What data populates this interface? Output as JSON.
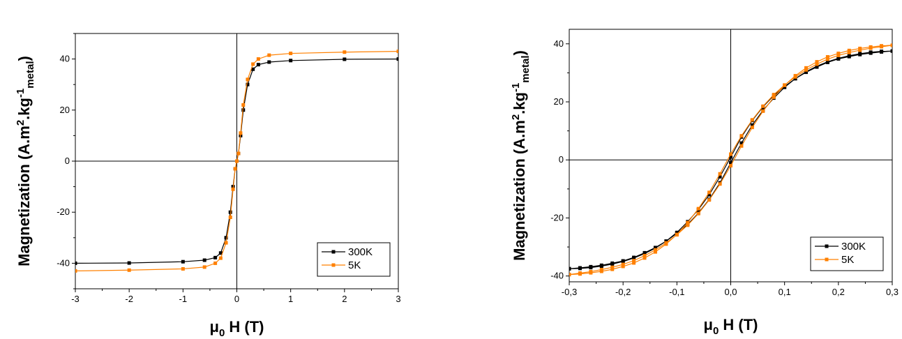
{
  "chart_data": [
    {
      "type": "line",
      "title": "",
      "xlabel": "μ0H (T)",
      "ylabel": "Magnetization (A.m2.kg-1metal)",
      "xlim": [
        -3,
        3
      ],
      "ylim": [
        -50,
        50
      ],
      "xticks": [
        "-3",
        "-2",
        "-1",
        "0",
        "1",
        "2",
        "3"
      ],
      "yticks": [
        "-40",
        "-20",
        "0",
        "20",
        "40"
      ],
      "legend_position": "bottom-right",
      "origin_lines": true,
      "series": [
        {
          "name": "300K",
          "color": "#000000",
          "marker": "square",
          "x": [
            -3.0,
            -2.0,
            -1.0,
            -0.6,
            -0.4,
            -0.3,
            -0.2,
            -0.12,
            -0.07,
            -0.03,
            0.0,
            0.03,
            0.07,
            0.12,
            0.2,
            0.3,
            0.4,
            0.6,
            1.0,
            2.0,
            3.0
          ],
          "y": [
            -40.0,
            -39.9,
            -39.4,
            -38.8,
            -37.8,
            -36.0,
            -30.0,
            -20.0,
            -10.0,
            -3.0,
            0.0,
            3.0,
            10.0,
            20.0,
            30.0,
            36.0,
            37.8,
            38.8,
            39.4,
            39.9,
            40.0
          ]
        },
        {
          "name": "5K",
          "color": "#ff8000",
          "marker": "square",
          "x": [
            -3.0,
            -2.0,
            -1.0,
            -0.6,
            -0.4,
            -0.3,
            -0.2,
            -0.12,
            -0.07,
            -0.03,
            0.0,
            0.03,
            0.07,
            0.12,
            0.2,
            0.3,
            0.4,
            0.6,
            1.0,
            2.0,
            3.0
          ],
          "y": [
            -43.0,
            -42.7,
            -42.2,
            -41.5,
            -40.0,
            -38.0,
            -32.0,
            -22.0,
            -11.0,
            -3.0,
            0.0,
            3.0,
            11.0,
            22.0,
            32.0,
            38.0,
            40.0,
            41.5,
            42.2,
            42.7,
            43.0
          ]
        }
      ]
    },
    {
      "type": "line",
      "title": "",
      "xlabel": "μ0H (T)",
      "ylabel": "Magnetization (A.m2.kg-1metal)",
      "xlim": [
        -0.3,
        0.3
      ],
      "ylim": [
        -42,
        45
      ],
      "xticks": [
        "-0,3",
        "-0,2",
        "-0,1",
        "0,0",
        "0,1",
        "0,2",
        "0,3"
      ],
      "yticks": [
        "-40",
        "-20",
        "0",
        "20",
        "40"
      ],
      "legend_position": "bottom-right",
      "origin_lines": true,
      "series": [
        {
          "name": "300K",
          "color": "#000000",
          "marker": "square",
          "x": [
            -0.3,
            -0.28,
            -0.26,
            -0.24,
            -0.22,
            -0.2,
            -0.18,
            -0.16,
            -0.14,
            -0.12,
            -0.1,
            -0.08,
            -0.06,
            -0.04,
            -0.02,
            0.0,
            0.02,
            0.04,
            0.06,
            0.08,
            0.1,
            0.12,
            0.14,
            0.16,
            0.18,
            0.2,
            0.22,
            0.24,
            0.26,
            0.28,
            0.3,
            0.28,
            0.26,
            0.24,
            0.22,
            0.2,
            0.18,
            0.16,
            0.14,
            0.12,
            0.1,
            0.08,
            0.06,
            0.04,
            0.02,
            0.0,
            -0.02,
            -0.04,
            -0.06,
            -0.08,
            -0.1,
            -0.12,
            -0.14,
            -0.16,
            -0.18,
            -0.2,
            -0.22,
            -0.24,
            -0.26,
            -0.28,
            -0.3
          ],
          "y": [
            -37.5,
            -37.2,
            -36.8,
            -36.3,
            -35.6,
            -34.8,
            -33.6,
            -32.0,
            -30.2,
            -28.0,
            -25.3,
            -22.2,
            -18.3,
            -13.6,
            -7.9,
            -1.0,
            5.8,
            12.0,
            17.1,
            21.3,
            25.0,
            28.0,
            30.4,
            32.3,
            33.8,
            35.0,
            35.9,
            36.6,
            37.1,
            37.4,
            37.5,
            37.2,
            36.8,
            36.3,
            35.6,
            34.8,
            33.6,
            32.0,
            30.2,
            28.0,
            25.3,
            22.2,
            18.3,
            13.6,
            7.9,
            1.0,
            -5.8,
            -12.0,
            -17.1,
            -21.3,
            -25.0,
            -28.0,
            -30.4,
            -32.3,
            -33.8,
            -35.0,
            -35.9,
            -36.6,
            -37.1,
            -37.4,
            -37.5
          ]
        },
        {
          "name": "5K",
          "color": "#ff8000",
          "marker": "square",
          "x": [
            -0.3,
            -0.28,
            -0.26,
            -0.24,
            -0.22,
            -0.2,
            -0.18,
            -0.16,
            -0.14,
            -0.12,
            -0.1,
            -0.08,
            -0.06,
            -0.04,
            -0.02,
            0.0,
            0.02,
            0.04,
            0.06,
            0.08,
            0.1,
            0.12,
            0.14,
            0.16,
            0.18,
            0.2,
            0.22,
            0.24,
            0.26,
            0.28,
            0.3,
            0.28,
            0.26,
            0.24,
            0.22,
            0.2,
            0.18,
            0.16,
            0.14,
            0.12,
            0.1,
            0.08,
            0.06,
            0.04,
            0.02,
            0.0,
            -0.02,
            -0.04,
            -0.06,
            -0.08,
            -0.1,
            -0.12,
            -0.14,
            -0.16,
            -0.18,
            -0.2,
            -0.22,
            -0.24,
            -0.26,
            -0.28,
            -0.3
          ],
          "y": [
            -39.5,
            -39.0,
            -38.5,
            -37.8,
            -37.0,
            -36.0,
            -34.7,
            -33.0,
            -31.0,
            -28.6,
            -25.8,
            -22.5,
            -18.5,
            -13.8,
            -8.3,
            -2.0,
            4.8,
            11.2,
            16.8,
            21.6,
            25.7,
            29.0,
            31.7,
            33.8,
            35.5,
            36.7,
            37.7,
            38.4,
            38.9,
            39.3,
            39.5,
            39.0,
            38.5,
            37.8,
            37.0,
            36.0,
            34.7,
            33.0,
            31.0,
            28.6,
            25.8,
            22.5,
            18.5,
            13.8,
            8.3,
            2.0,
            -4.8,
            -11.2,
            -16.8,
            -21.6,
            -25.7,
            -29.0,
            -31.7,
            -33.8,
            -35.5,
            -36.7,
            -37.7,
            -38.4,
            -38.9,
            -39.3,
            -39.5
          ]
        }
      ]
    }
  ],
  "labels": {
    "y_main": "Magnetization (A.m",
    "y_sup2": "2",
    "y_mid": ".kg",
    "y_sup1": "-1",
    "y_sub": "metal",
    "y_close": ")",
    "x_mu": "μ",
    "x_sub": "0",
    "x_rest": "H (T)"
  }
}
